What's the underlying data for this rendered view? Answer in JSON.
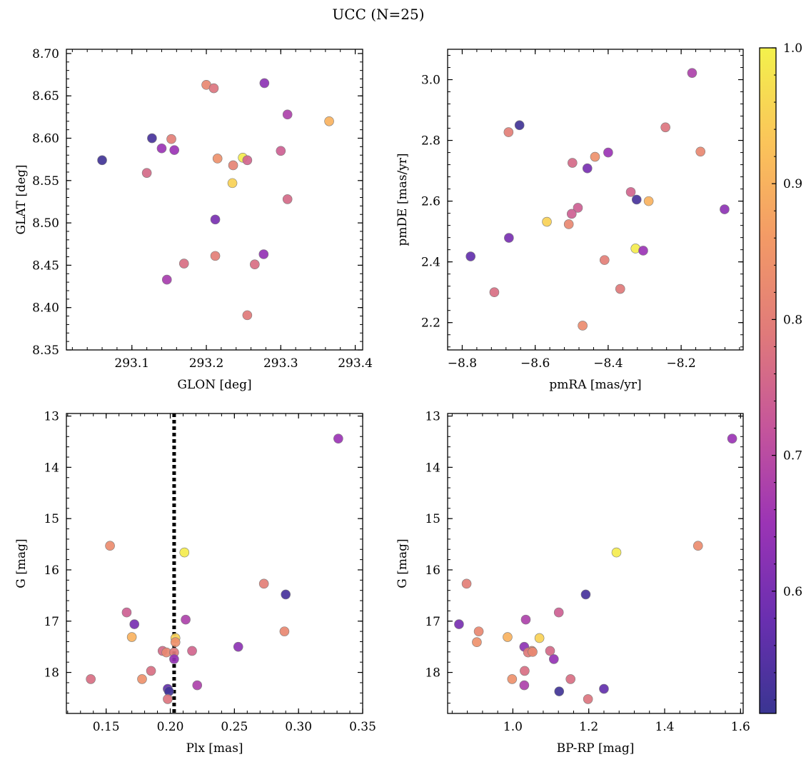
{
  "figure": {
    "title": "UCC (N=25)"
  },
  "colormap": {
    "name": "plasma",
    "range": [
      0.51,
      1.0
    ],
    "ticks": [
      0.6,
      0.7,
      0.8,
      0.9,
      1.0
    ],
    "tick_labels": [
      "0.6",
      "0.7",
      "0.8",
      "0.9",
      "1.0"
    ],
    "stops": [
      "#3a3592",
      "#6a2fb0",
      "#9b34b5",
      "#c5559b",
      "#e07a7a",
      "#f39a66",
      "#fbc45a",
      "#f3f14c"
    ]
  },
  "chart_data": [
    {
      "type": "scatter",
      "xlabel": "GLON [deg]",
      "ylabel": "GLAT [deg]",
      "xlim": [
        293.012,
        293.41
      ],
      "ylim": [
        8.35,
        8.705
      ],
      "invert_y": false,
      "xticks": [
        293.1,
        293.2,
        293.3,
        293.4
      ],
      "xtick_labels": [
        "293.1",
        "293.2",
        "293.3",
        "293.4"
      ],
      "yticks": [
        8.35,
        8.4,
        8.45,
        8.5,
        8.55,
        8.6,
        8.65,
        8.7
      ],
      "ytick_labels": [
        "8.35",
        "8.40",
        "8.45",
        "8.50",
        "8.55",
        "8.60",
        "8.65",
        "8.70"
      ],
      "points": [
        {
          "x": 293.06,
          "y": 8.574,
          "c": 0.52
        },
        {
          "x": 293.127,
          "y": 8.6,
          "c": 0.53
        },
        {
          "x": 293.12,
          "y": 8.559,
          "c": 0.76
        },
        {
          "x": 293.14,
          "y": 8.588,
          "c": 0.65
        },
        {
          "x": 293.153,
          "y": 8.599,
          "c": 0.8
        },
        {
          "x": 293.157,
          "y": 8.586,
          "c": 0.65
        },
        {
          "x": 293.147,
          "y": 8.433,
          "c": 0.67
        },
        {
          "x": 293.17,
          "y": 8.452,
          "c": 0.77
        },
        {
          "x": 293.2,
          "y": 8.663,
          "c": 0.82
        },
        {
          "x": 293.21,
          "y": 8.659,
          "c": 0.78
        },
        {
          "x": 293.215,
          "y": 8.576,
          "c": 0.84
        },
        {
          "x": 293.212,
          "y": 8.504,
          "c": 0.6
        },
        {
          "x": 293.212,
          "y": 8.461,
          "c": 0.8
        },
        {
          "x": 293.235,
          "y": 8.547,
          "c": 0.95
        },
        {
          "x": 293.236,
          "y": 8.568,
          "c": 0.81
        },
        {
          "x": 293.249,
          "y": 8.577,
          "c": 0.99
        },
        {
          "x": 293.255,
          "y": 8.574,
          "c": 0.75
        },
        {
          "x": 293.255,
          "y": 8.391,
          "c": 0.79
        },
        {
          "x": 293.265,
          "y": 8.451,
          "c": 0.77
        },
        {
          "x": 293.278,
          "y": 8.665,
          "c": 0.63
        },
        {
          "x": 293.277,
          "y": 8.463,
          "c": 0.64
        },
        {
          "x": 293.3,
          "y": 8.585,
          "c": 0.74
        },
        {
          "x": 293.309,
          "y": 8.628,
          "c": 0.68
        },
        {
          "x": 293.309,
          "y": 8.528,
          "c": 0.76
        },
        {
          "x": 293.365,
          "y": 8.62,
          "c": 0.9
        }
      ]
    },
    {
      "type": "scatter",
      "xlabel": "pmRA [mas/yr]",
      "ylabel": "pmDE [mas/yr]",
      "xlim": [
        -8.84,
        -8.03
      ],
      "ylim": [
        2.11,
        3.1
      ],
      "invert_y": false,
      "xticks": [
        -8.8,
        -8.6,
        -8.4,
        -8.2
      ],
      "xtick_labels": [
        "−8.8",
        "−8.6",
        "−8.4",
        "−8.2"
      ],
      "yticks": [
        2.2,
        2.4,
        2.6,
        2.8,
        3.0
      ],
      "ytick_labels": [
        "2.2",
        "2.4",
        "2.6",
        "2.8",
        "3.0"
      ],
      "points": [
        {
          "x": -8.643,
          "y": 2.85,
          "c": 0.52
        },
        {
          "x": -8.673,
          "y": 2.827,
          "c": 0.8
        },
        {
          "x": -8.498,
          "y": 2.726,
          "c": 0.76
        },
        {
          "x": -8.436,
          "y": 2.746,
          "c": 0.84
        },
        {
          "x": -8.4,
          "y": 2.76,
          "c": 0.65
        },
        {
          "x": -8.457,
          "y": 2.708,
          "c": 0.6
        },
        {
          "x": -8.243,
          "y": 2.843,
          "c": 0.78
        },
        {
          "x": -8.17,
          "y": 3.022,
          "c": 0.68
        },
        {
          "x": -8.147,
          "y": 2.763,
          "c": 0.82
        },
        {
          "x": -8.338,
          "y": 2.63,
          "c": 0.75
        },
        {
          "x": -8.322,
          "y": 2.605,
          "c": 0.53
        },
        {
          "x": -8.289,
          "y": 2.6,
          "c": 0.9
        },
        {
          "x": -8.081,
          "y": 2.573,
          "c": 0.63
        },
        {
          "x": -8.483,
          "y": 2.578,
          "c": 0.74
        },
        {
          "x": -8.5,
          "y": 2.558,
          "c": 0.74
        },
        {
          "x": -8.568,
          "y": 2.532,
          "c": 0.95
        },
        {
          "x": -8.508,
          "y": 2.524,
          "c": 0.82
        },
        {
          "x": -8.672,
          "y": 2.479,
          "c": 0.6
        },
        {
          "x": -8.325,
          "y": 2.444,
          "c": 0.99
        },
        {
          "x": -8.304,
          "y": 2.437,
          "c": 0.65
        },
        {
          "x": -8.41,
          "y": 2.406,
          "c": 0.8
        },
        {
          "x": -8.777,
          "y": 2.418,
          "c": 0.57
        },
        {
          "x": -8.712,
          "y": 2.3,
          "c": 0.77
        },
        {
          "x": -8.367,
          "y": 2.311,
          "c": 0.79
        },
        {
          "x": -8.47,
          "y": 2.19,
          "c": 0.83
        }
      ]
    },
    {
      "type": "scatter",
      "xlabel": "Plx [mas]",
      "ylabel": "G [mag]",
      "xlim": [
        0.119,
        0.35
      ],
      "ylim": [
        18.8,
        12.95
      ],
      "invert_y": true,
      "vline": {
        "x": 0.203,
        "style": "dotted"
      },
      "xticks": [
        0.15,
        0.2,
        0.25,
        0.3,
        0.35
      ],
      "xtick_labels": [
        "0.15",
        "0.20",
        "0.25",
        "0.30",
        "0.35"
      ],
      "yticks": [
        13,
        14,
        15,
        16,
        17,
        18
      ],
      "ytick_labels": [
        "13",
        "14",
        "15",
        "16",
        "17",
        "18"
      ],
      "points": [
        {
          "x": 0.331,
          "y": 13.44,
          "c": 0.65
        },
        {
          "x": 0.153,
          "y": 15.53,
          "c": 0.83
        },
        {
          "x": 0.211,
          "y": 15.66,
          "c": 0.99
        },
        {
          "x": 0.273,
          "y": 16.27,
          "c": 0.8
        },
        {
          "x": 0.29,
          "y": 16.48,
          "c": 0.53
        },
        {
          "x": 0.166,
          "y": 16.83,
          "c": 0.74
        },
        {
          "x": 0.212,
          "y": 16.97,
          "c": 0.68
        },
        {
          "x": 0.172,
          "y": 17.06,
          "c": 0.6
        },
        {
          "x": 0.289,
          "y": 17.2,
          "c": 0.82
        },
        {
          "x": 0.17,
          "y": 17.31,
          "c": 0.9
        },
        {
          "x": 0.204,
          "y": 17.33,
          "c": 0.95
        },
        {
          "x": 0.204,
          "y": 17.41,
          "c": 0.84
        },
        {
          "x": 0.253,
          "y": 17.5,
          "c": 0.63
        },
        {
          "x": 0.194,
          "y": 17.58,
          "c": 0.76
        },
        {
          "x": 0.197,
          "y": 17.61,
          "c": 0.82
        },
        {
          "x": 0.203,
          "y": 17.61,
          "c": 0.79
        },
        {
          "x": 0.217,
          "y": 17.58,
          "c": 0.75
        },
        {
          "x": 0.203,
          "y": 17.74,
          "c": 0.64
        },
        {
          "x": 0.185,
          "y": 17.97,
          "c": 0.77
        },
        {
          "x": 0.178,
          "y": 18.13,
          "c": 0.84
        },
        {
          "x": 0.138,
          "y": 18.13,
          "c": 0.77
        },
        {
          "x": 0.221,
          "y": 18.25,
          "c": 0.68
        },
        {
          "x": 0.198,
          "y": 18.32,
          "c": 0.57
        },
        {
          "x": 0.199,
          "y": 18.37,
          "c": 0.52
        },
        {
          "x": 0.198,
          "y": 18.52,
          "c": 0.78
        }
      ]
    },
    {
      "type": "scatter",
      "xlabel": "BP-RP [mag]",
      "ylabel": "G [mag]",
      "xlim": [
        0.828,
        1.607
      ],
      "ylim": [
        18.8,
        12.95
      ],
      "invert_y": true,
      "xticks": [
        1.0,
        1.2,
        1.4,
        1.6
      ],
      "xtick_labels": [
        "1.0",
        "1.2",
        "1.4",
        "1.6"
      ],
      "yticks": [
        13,
        14,
        15,
        16,
        17,
        18
      ],
      "ytick_labels": [
        "13",
        "14",
        "15",
        "16",
        "17",
        "18"
      ],
      "points": [
        {
          "x": 1.578,
          "y": 13.44,
          "c": 0.65
        },
        {
          "x": 1.488,
          "y": 15.53,
          "c": 0.83
        },
        {
          "x": 1.273,
          "y": 15.66,
          "c": 0.99
        },
        {
          "x": 0.878,
          "y": 16.27,
          "c": 0.8
        },
        {
          "x": 1.192,
          "y": 16.48,
          "c": 0.53
        },
        {
          "x": 1.121,
          "y": 16.83,
          "c": 0.74
        },
        {
          "x": 1.034,
          "y": 16.97,
          "c": 0.68
        },
        {
          "x": 0.858,
          "y": 17.06,
          "c": 0.6
        },
        {
          "x": 0.91,
          "y": 17.2,
          "c": 0.82
        },
        {
          "x": 0.986,
          "y": 17.31,
          "c": 0.9
        },
        {
          "x": 1.07,
          "y": 17.33,
          "c": 0.95
        },
        {
          "x": 0.905,
          "y": 17.41,
          "c": 0.84
        },
        {
          "x": 1.03,
          "y": 17.5,
          "c": 0.63
        },
        {
          "x": 1.098,
          "y": 17.58,
          "c": 0.76
        },
        {
          "x": 1.05,
          "y": 17.58,
          "c": 0.82
        },
        {
          "x": 1.04,
          "y": 17.61,
          "c": 0.79
        },
        {
          "x": 1.108,
          "y": 17.74,
          "c": 0.64
        },
        {
          "x": 1.031,
          "y": 17.97,
          "c": 0.77
        },
        {
          "x": 0.998,
          "y": 18.13,
          "c": 0.84
        },
        {
          "x": 1.152,
          "y": 18.13,
          "c": 0.77
        },
        {
          "x": 1.03,
          "y": 18.25,
          "c": 0.68
        },
        {
          "x": 1.24,
          "y": 18.32,
          "c": 0.57
        },
        {
          "x": 1.122,
          "y": 18.37,
          "c": 0.52
        },
        {
          "x": 1.198,
          "y": 18.52,
          "c": 0.78
        },
        {
          "x": 1.052,
          "y": 17.6,
          "c": 0.82
        }
      ]
    }
  ]
}
